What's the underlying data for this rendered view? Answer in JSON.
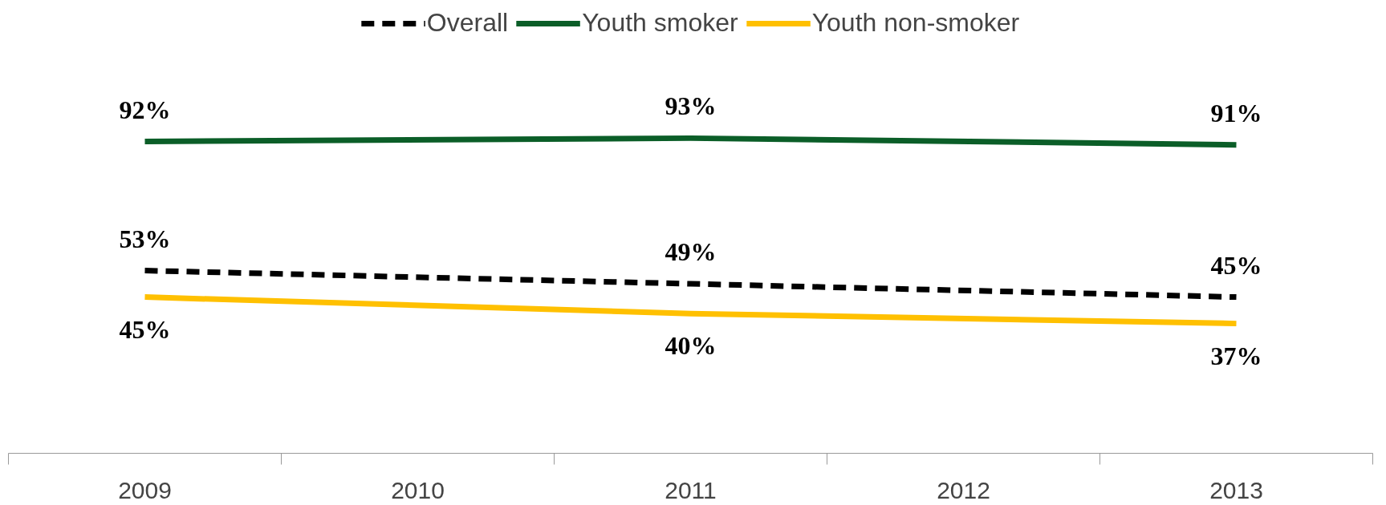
{
  "chart_data": {
    "type": "line",
    "series": [
      {
        "name": "Overall",
        "color": "#000000",
        "line_style": "dashed",
        "x": [
          2009,
          2011,
          2013
        ],
        "values": [
          53,
          49,
          45
        ],
        "value_labels": [
          "53%",
          "49%",
          "45%"
        ]
      },
      {
        "name": "Youth smoker",
        "color": "#0b5e28",
        "x": [
          2009,
          2011,
          2013
        ],
        "values": [
          92,
          93,
          91
        ],
        "value_labels": [
          "92%",
          "93%",
          "91%"
        ]
      },
      {
        "name": "Youth non-smoker",
        "color": "#ffc000",
        "x": [
          2009,
          2011,
          2013
        ],
        "values": [
          45,
          40,
          37
        ],
        "value_labels": [
          "45%",
          "40%",
          "37%"
        ]
      }
    ],
    "xlim": [
      2008.5,
      2013.5
    ],
    "xticks": [
      {
        "value": 2008.5,
        "label": null
      },
      2009,
      {
        "value": 2009.5,
        "label": null
      },
      2010,
      {
        "value": 2010.5,
        "label": null
      },
      2011,
      {
        "value": 2011.5,
        "label": null
      },
      2012,
      {
        "value": 2012.5,
        "label": null
      },
      2013,
      {
        "value": 2013.5,
        "label": null
      }
    ],
    "tick_labels": "x",
    "grid": false,
    "legend": "top",
    "marker": "none"
  }
}
